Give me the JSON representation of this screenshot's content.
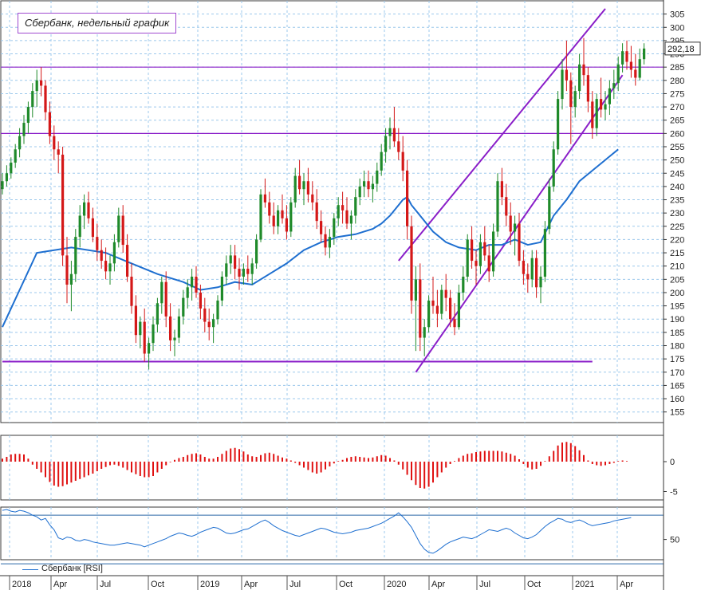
{
  "title": "Сбербанк, недельный график",
  "last_price_label": "292,18",
  "legend": {
    "rsi_label": "Сбербанк [RSI]"
  },
  "colors": {
    "up": "#1f8a2a",
    "down": "#d41818",
    "ma": "#1e6fd0",
    "line": "#8a1ec8",
    "grid": "#9cc8ec",
    "hist": "#e01010",
    "rsi": "#1e6fd0"
  },
  "chart_data": [
    {
      "type": "candlestick",
      "name": "price",
      "y_ticks": [
        155,
        160,
        165,
        170,
        175,
        180,
        185,
        190,
        195,
        200,
        205,
        210,
        215,
        220,
        225,
        230,
        235,
        240,
        245,
        250,
        255,
        260,
        265,
        270,
        275,
        280,
        285,
        290,
        295,
        300,
        305
      ],
      "y_range": [
        151,
        310
      ],
      "x_tick_labels": [
        "2018",
        "Apr",
        "Jul",
        "Oct",
        "2019",
        "Apr",
        "Jul",
        "Oct",
        "2020",
        "Apr",
        "Jul",
        "Oct",
        "2021",
        "Apr"
      ],
      "horizontal_levels": [
        285,
        260,
        174
      ],
      "candles": [
        [
          239,
          245,
          237,
          242
        ],
        [
          242,
          248,
          240,
          245
        ],
        [
          245,
          251,
          243,
          249
        ],
        [
          249,
          256,
          247,
          254
        ],
        [
          254,
          262,
          251,
          259
        ],
        [
          259,
          267,
          256,
          264
        ],
        [
          264,
          272,
          260,
          270
        ],
        [
          270,
          279,
          266,
          276
        ],
        [
          276,
          284,
          270,
          280
        ],
        [
          280,
          285,
          274,
          278
        ],
        [
          278,
          280,
          265,
          268
        ],
        [
          268,
          272,
          256,
          259
        ],
        [
          259,
          263,
          250,
          254
        ],
        [
          254,
          257,
          245,
          252
        ],
        [
          252,
          255,
          210,
          214
        ],
        [
          214,
          221,
          196,
          203
        ],
        [
          203,
          212,
          193,
          207
        ],
        [
          207,
          224,
          204,
          221
        ],
        [
          221,
          233,
          217,
          229
        ],
        [
          229,
          237,
          224,
          234
        ],
        [
          234,
          238,
          226,
          228
        ],
        [
          228,
          232,
          219,
          221
        ],
        [
          221,
          226,
          212,
          216
        ],
        [
          216,
          220,
          209,
          212
        ],
        [
          212,
          217,
          205,
          208
        ],
        [
          208,
          214,
          203,
          211
        ],
        [
          211,
          222,
          208,
          219
        ],
        [
          219,
          232,
          217,
          229
        ],
        [
          229,
          233,
          215,
          218
        ],
        [
          218,
          222,
          204,
          206
        ],
        [
          206,
          211,
          192,
          195
        ],
        [
          195,
          199,
          181,
          184
        ],
        [
          184,
          191,
          179,
          189
        ],
        [
          189,
          194,
          174,
          177
        ],
        [
          177,
          183,
          171,
          181
        ],
        [
          181,
          191,
          178,
          188
        ],
        [
          188,
          198,
          185,
          196
        ],
        [
          196,
          206,
          192,
          204
        ],
        [
          204,
          208,
          187,
          191
        ],
        [
          191,
          196,
          178,
          182
        ],
        [
          182,
          186,
          176,
          183
        ],
        [
          183,
          194,
          181,
          191
        ],
        [
          191,
          201,
          188,
          198
        ],
        [
          198,
          205,
          194,
          202
        ],
        [
          202,
          209,
          197,
          206
        ],
        [
          206,
          210,
          198,
          200
        ],
        [
          200,
          203,
          190,
          194
        ],
        [
          194,
          198,
          185,
          189
        ],
        [
          189,
          194,
          182,
          187
        ],
        [
          187,
          192,
          181,
          190
        ],
        [
          190,
          199,
          188,
          197
        ],
        [
          197,
          208,
          195,
          206
        ],
        [
          206,
          214,
          203,
          211
        ],
        [
          211,
          218,
          207,
          214
        ],
        [
          214,
          218,
          205,
          209
        ],
        [
          209,
          213,
          201,
          206
        ],
        [
          206,
          211,
          203,
          209
        ],
        [
          209,
          214,
          204,
          207
        ],
        [
          207,
          213,
          203,
          211
        ],
        [
          211,
          222,
          209,
          220
        ],
        [
          220,
          239,
          219,
          237
        ],
        [
          237,
          243,
          232,
          234
        ],
        [
          234,
          238,
          226,
          229
        ],
        [
          229,
          234,
          222,
          225
        ],
        [
          225,
          233,
          222,
          231
        ],
        [
          231,
          237,
          226,
          228
        ],
        [
          228,
          233,
          220,
          223
        ],
        [
          223,
          236,
          221,
          234
        ],
        [
          234,
          247,
          232,
          244
        ],
        [
          244,
          250,
          237,
          239
        ],
        [
          239,
          245,
          233,
          242
        ],
        [
          242,
          247,
          234,
          237
        ],
        [
          237,
          242,
          231,
          234
        ],
        [
          234,
          239,
          224,
          227
        ],
        [
          227,
          231,
          219,
          222
        ],
        [
          222,
          225,
          214,
          217
        ],
        [
          217,
          224,
          213,
          221
        ],
        [
          221,
          230,
          218,
          228
        ],
        [
          228,
          236,
          225,
          233
        ],
        [
          233,
          238,
          226,
          231
        ],
        [
          231,
          236,
          224,
          226
        ],
        [
          226,
          231,
          220,
          229
        ],
        [
          229,
          239,
          226,
          236
        ],
        [
          236,
          243,
          233,
          240
        ],
        [
          240,
          246,
          236,
          242
        ],
        [
          242,
          246,
          236,
          239
        ],
        [
          239,
          244,
          234,
          241
        ],
        [
          241,
          249,
          238,
          246
        ],
        [
          246,
          256,
          244,
          253
        ],
        [
          253,
          262,
          249,
          259
        ],
        [
          259,
          266,
          254,
          262
        ],
        [
          262,
          270,
          255,
          257
        ],
        [
          257,
          262,
          250,
          253
        ],
        [
          253,
          259,
          242,
          246
        ],
        [
          246,
          250,
          220,
          225
        ],
        [
          225,
          229,
          192,
          197
        ],
        [
          197,
          210,
          178,
          205
        ],
        [
          205,
          211,
          178,
          183
        ],
        [
          183,
          190,
          176,
          187
        ],
        [
          187,
          199,
          185,
          197
        ],
        [
          197,
          206,
          192,
          195
        ],
        [
          195,
          201,
          187,
          192
        ],
        [
          192,
          203,
          190,
          201
        ],
        [
          201,
          207,
          193,
          198
        ],
        [
          198,
          201,
          187,
          190
        ],
        [
          190,
          196,
          184,
          187
        ],
        [
          187,
          203,
          186,
          200
        ],
        [
          200,
          210,
          197,
          206
        ],
        [
          206,
          222,
          204,
          220
        ],
        [
          220,
          225,
          209,
          212
        ],
        [
          212,
          216,
          203,
          210
        ],
        [
          210,
          222,
          207,
          219
        ],
        [
          219,
          225,
          212,
          214
        ],
        [
          214,
          218,
          204,
          208
        ],
        [
          208,
          226,
          206,
          223
        ],
        [
          223,
          245,
          221,
          242
        ],
        [
          242,
          247,
          233,
          236
        ],
        [
          236,
          241,
          225,
          229
        ],
        [
          229,
          234,
          218,
          223
        ],
        [
          223,
          229,
          214,
          226
        ],
        [
          226,
          230,
          210,
          212
        ],
        [
          212,
          216,
          203,
          207
        ],
        [
          207,
          211,
          200,
          205
        ],
        [
          205,
          216,
          202,
          213
        ],
        [
          213,
          216,
          198,
          202
        ],
        [
          202,
          210,
          196,
          206
        ],
        [
          206,
          227,
          204,
          224
        ],
        [
          224,
          243,
          222,
          240
        ],
        [
          240,
          257,
          238,
          254
        ],
        [
          254,
          276,
          252,
          273
        ],
        [
          273,
          288,
          269,
          284
        ],
        [
          284,
          295,
          276,
          280
        ],
        [
          280,
          283,
          256,
          270
        ],
        [
          270,
          278,
          266,
          276
        ],
        [
          276,
          290,
          273,
          286
        ],
        [
          286,
          296,
          278,
          282
        ],
        [
          282,
          285,
          268,
          272
        ],
        [
          272,
          276,
          258,
          262
        ],
        [
          262,
          275,
          259,
          273
        ],
        [
          273,
          281,
          266,
          269
        ],
        [
          269,
          276,
          265,
          271
        ],
        [
          271,
          280,
          267,
          277
        ],
        [
          277,
          284,
          273,
          279
        ],
        [
          279,
          289,
          276,
          286
        ],
        [
          286,
          294,
          283,
          291
        ],
        [
          291,
          295,
          284,
          287
        ],
        [
          287,
          293,
          281,
          284
        ],
        [
          284,
          290,
          278,
          281
        ],
        [
          281,
          292,
          280,
          288
        ],
        [
          288,
          294,
          286,
          292
        ]
      ],
      "ma": [
        [
          0,
          187
        ],
        [
          8,
          215
        ],
        [
          16,
          217
        ],
        [
          24,
          215
        ],
        [
          30,
          211
        ],
        [
          36,
          207
        ],
        [
          42,
          204
        ],
        [
          46,
          201
        ],
        [
          50,
          202
        ],
        [
          54,
          204
        ],
        [
          58,
          203
        ],
        [
          62,
          207
        ],
        [
          66,
          211
        ],
        [
          70,
          216
        ],
        [
          74,
          219
        ],
        [
          78,
          221
        ],
        [
          82,
          222
        ],
        [
          86,
          224
        ],
        [
          88,
          226
        ],
        [
          90,
          229
        ],
        [
          92,
          233
        ],
        [
          93,
          235
        ],
        [
          94,
          236
        ],
        [
          95,
          233
        ],
        [
          97,
          229
        ],
        [
          100,
          223
        ],
        [
          103,
          219
        ],
        [
          106,
          217
        ],
        [
          110,
          216
        ],
        [
          113,
          218
        ],
        [
          116,
          218
        ],
        [
          119,
          220
        ],
        [
          122,
          218
        ],
        [
          125,
          219
        ],
        [
          128,
          229
        ],
        [
          131,
          235
        ],
        [
          134,
          242
        ],
        [
          137,
          246
        ],
        [
          140,
          250
        ],
        [
          143,
          254
        ]
      ],
      "channel_upper": [
        [
          92,
          212
        ],
        [
          140,
          307
        ]
      ],
      "channel_lower": [
        [
          96,
          170
        ],
        [
          144,
          282
        ]
      ],
      "support": [
        [
          0,
          174
        ],
        [
          137,
          174
        ]
      ]
    },
    {
      "type": "bar",
      "name": "oscillator",
      "y_ticks": [
        -5,
        0
      ],
      "y_range": [
        -6.4,
        4.4
      ],
      "values": [
        0.5,
        0.8,
        1.2,
        1.3,
        1.3,
        1.2,
        0.5,
        -0.5,
        -1.2,
        -1.8,
        -2.6,
        -3.4,
        -4.0,
        -4.2,
        -4.1,
        -3.8,
        -3.5,
        -3.2,
        -2.9,
        -2.6,
        -2.3,
        -2.0,
        -1.6,
        -1.2,
        -0.9,
        -0.6,
        -0.5,
        -0.7,
        -1.0,
        -1.4,
        -1.8,
        -2.1,
        -2.4,
        -2.6,
        -2.6,
        -2.4,
        -1.8,
        -1.2,
        -0.6,
        -0.1,
        0.3,
        0.6,
        0.8,
        1.1,
        1.3,
        1.4,
        1.2,
        0.8,
        0.5,
        0.5,
        0.8,
        1.3,
        1.8,
        2.2,
        2.3,
        2.1,
        1.7,
        1.2,
        0.9,
        0.8,
        1.1,
        1.4,
        1.5,
        1.3,
        1.0,
        0.7,
        0.5,
        0.2,
        -0.2,
        -0.6,
        -1.0,
        -1.4,
        -1.8,
        -2.0,
        -1.8,
        -1.3,
        -0.8,
        -0.3,
        0.1,
        0.3,
        0.6,
        0.8,
        0.9,
        0.8,
        0.7,
        0.6,
        0.7,
        0.9,
        1.1,
        1.0,
        0.6,
        0.2,
        -0.5,
        -1.3,
        -2.2,
        -3.1,
        -3.9,
        -4.4,
        -4.5,
        -4.2,
        -3.5,
        -2.6,
        -1.8,
        -1.0,
        -0.4,
        0.1,
        0.6,
        1.0,
        1.3,
        1.4,
        1.6,
        1.7,
        1.8,
        1.8,
        1.8,
        1.8,
        1.7,
        1.5,
        1.3,
        1.0,
        0.4,
        -0.4,
        -1.0,
        -1.3,
        -1.2,
        -0.7,
        0.1,
        0.9,
        1.8,
        2.7,
        3.2,
        3.3,
        3.1,
        2.6,
        1.9,
        1.1,
        0.2,
        -0.4,
        -0.6,
        -0.7,
        -0.6,
        -0.4,
        -0.2,
        0.1,
        0.2,
        0.1,
        0.0
      ]
    },
    {
      "type": "line",
      "name": "Сбербанк [RSI]",
      "y_ticks": [
        50
      ],
      "y_range": [
        25,
        90
      ],
      "reference_lines": [
        80,
        20
      ],
      "values": [
        86,
        87,
        85,
        84,
        86,
        85,
        83,
        80,
        78,
        74,
        76,
        68,
        62,
        52,
        50,
        53,
        52,
        49,
        48,
        50,
        49,
        47,
        46,
        45,
        44,
        43,
        43,
        44,
        45,
        46,
        45,
        44,
        43,
        41,
        43,
        45,
        47,
        49,
        51,
        54,
        56,
        58,
        57,
        55,
        54,
        56,
        59,
        61,
        63,
        65,
        64,
        61,
        58,
        57,
        58,
        60,
        62,
        63,
        66,
        69,
        72,
        74,
        71,
        67,
        64,
        61,
        59,
        57,
        55,
        54,
        56,
        58,
        60,
        62,
        64,
        63,
        61,
        59,
        58,
        57,
        58,
        59,
        61,
        62,
        63,
        64,
        66,
        68,
        70,
        73,
        76,
        79,
        83,
        78,
        72,
        65,
        55,
        45,
        38,
        34,
        33,
        36,
        40,
        44,
        47,
        49,
        51,
        53,
        52,
        51,
        53,
        56,
        59,
        62,
        61,
        60,
        62,
        64,
        62,
        58,
        55,
        52,
        51,
        53,
        56,
        61,
        66,
        70,
        73,
        76,
        75,
        72,
        71,
        73,
        74,
        72,
        69,
        67,
        68,
        69,
        70,
        71,
        73,
        74,
        75,
        76,
        77
      ]
    }
  ]
}
